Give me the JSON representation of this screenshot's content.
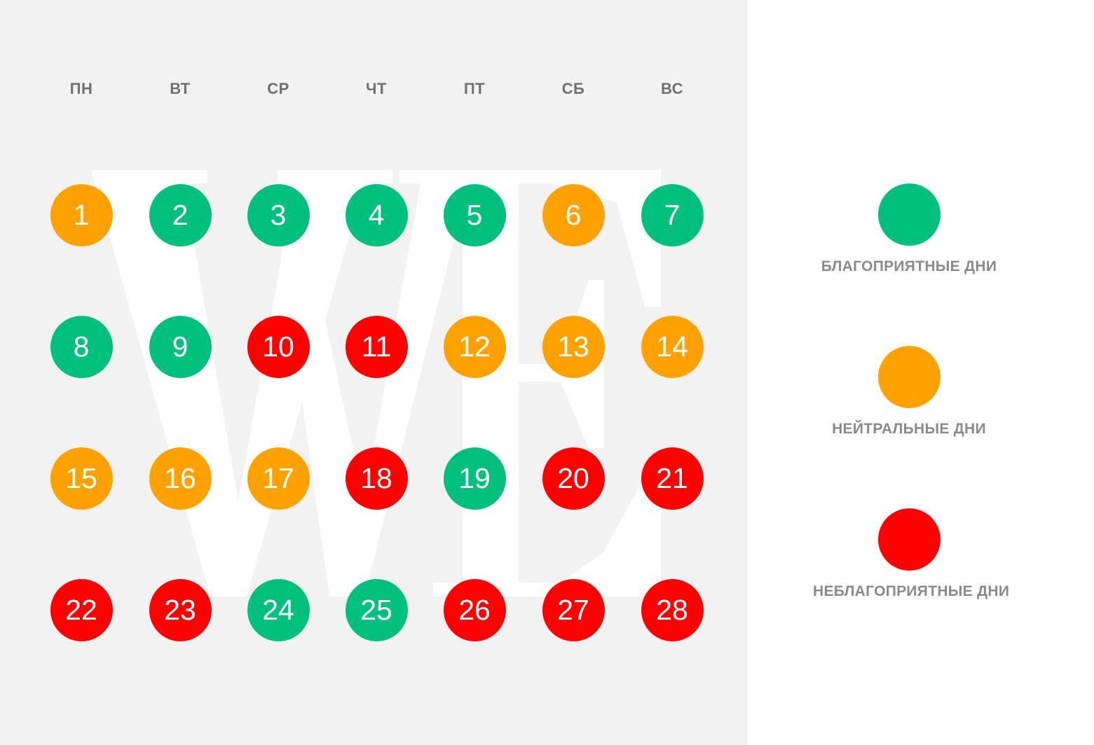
{
  "colors": {
    "favorable": "#00c080",
    "neutral": "#ffa200",
    "unfavorable": "#ff0000"
  },
  "weekdays": [
    "ПН",
    "ВТ",
    "СР",
    "ЧТ",
    "ПТ",
    "СБ",
    "ВС"
  ],
  "days": [
    {
      "num": "1",
      "type": "neutral"
    },
    {
      "num": "2",
      "type": "favorable"
    },
    {
      "num": "3",
      "type": "favorable"
    },
    {
      "num": "4",
      "type": "favorable"
    },
    {
      "num": "5",
      "type": "favorable"
    },
    {
      "num": "6",
      "type": "neutral"
    },
    {
      "num": "7",
      "type": "favorable"
    },
    {
      "num": "8",
      "type": "favorable"
    },
    {
      "num": "9",
      "type": "favorable"
    },
    {
      "num": "10",
      "type": "unfavorable"
    },
    {
      "num": "11",
      "type": "unfavorable"
    },
    {
      "num": "12",
      "type": "neutral"
    },
    {
      "num": "13",
      "type": "neutral"
    },
    {
      "num": "14",
      "type": "neutral"
    },
    {
      "num": "15",
      "type": "neutral"
    },
    {
      "num": "16",
      "type": "neutral"
    },
    {
      "num": "17",
      "type": "neutral"
    },
    {
      "num": "18",
      "type": "unfavorable"
    },
    {
      "num": "19",
      "type": "favorable"
    },
    {
      "num": "20",
      "type": "unfavorable"
    },
    {
      "num": "21",
      "type": "unfavorable"
    },
    {
      "num": "22",
      "type": "unfavorable"
    },
    {
      "num": "23",
      "type": "unfavorable"
    },
    {
      "num": "24",
      "type": "favorable"
    },
    {
      "num": "25",
      "type": "favorable"
    },
    {
      "num": "26",
      "type": "unfavorable"
    },
    {
      "num": "27",
      "type": "unfavorable"
    },
    {
      "num": "28",
      "type": "unfavorable"
    }
  ],
  "legend": [
    {
      "type": "favorable",
      "label": "БЛАГОПРИЯТНЫЕ ДНИ"
    },
    {
      "type": "neutral",
      "label": "НЕЙТРАЛЬНЫЕ ДНИ"
    },
    {
      "type": "unfavorable",
      "label": "НЕБЛАГОПРИЯТНЫЕ ДНИ"
    }
  ],
  "watermark": {
    "text": "WE",
    "color": "#ffffff"
  }
}
